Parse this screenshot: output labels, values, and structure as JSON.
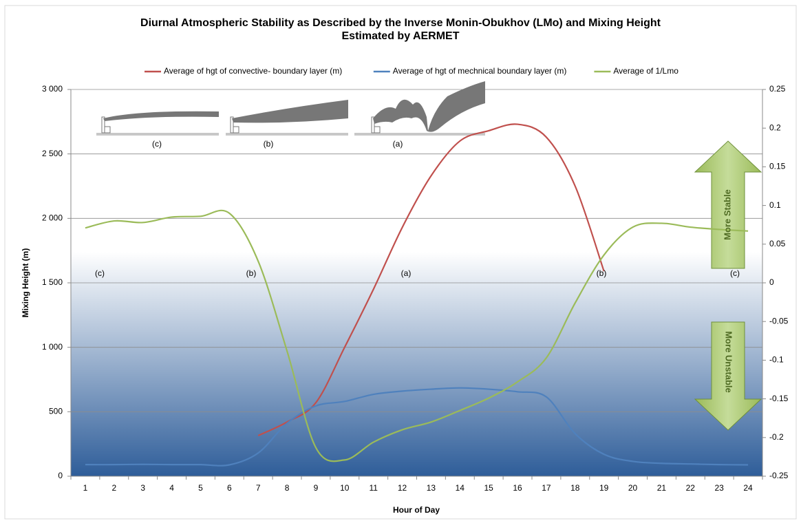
{
  "chart_data": {
    "type": "line",
    "title": "Diurnal Atmospheric Stability as Described by the Inverse Monin-Obukhov (LMo) and Mixing Height Estimated by AERMET",
    "xlabel": "Hour of Day",
    "ylabel": "Mixing Height (m)",
    "categories": [
      "1",
      "2",
      "3",
      "4",
      "5",
      "6",
      "7",
      "8",
      "9",
      "10",
      "11",
      "12",
      "13",
      "14",
      "15",
      "16",
      "17",
      "18",
      "19",
      "20",
      "21",
      "22",
      "23",
      "24"
    ],
    "series": [
      {
        "name": "Average of hgt of convective- boundary layer (m)",
        "color": "#c0504d",
        "values": [
          null,
          null,
          null,
          null,
          null,
          null,
          315,
          420,
          570,
          1000,
          1450,
          1930,
          2330,
          2600,
          2680,
          2730,
          2630,
          2250,
          1590,
          null,
          null,
          null,
          null,
          null
        ]
      },
      {
        "name": "Average of hgt of mechnical boundary layer (m)",
        "color": "#4f81bd",
        "values": [
          90,
          90,
          92,
          90,
          90,
          88,
          180,
          410,
          545,
          580,
          635,
          660,
          675,
          685,
          675,
          655,
          615,
          330,
          170,
          115,
          100,
          95,
          90,
          88
        ]
      },
      {
        "name": "Average of 1/Lmo",
        "color": "#9bbb59",
        "axis": "y2",
        "values": [
          0.071,
          0.08,
          0.078,
          0.085,
          0.086,
          0.09,
          0.028,
          -0.088,
          -0.213,
          -0.229,
          -0.206,
          -0.19,
          -0.18,
          -0.165,
          -0.149,
          -0.128,
          -0.097,
          -0.026,
          0.036,
          0.072,
          0.077,
          0.072,
          0.069,
          0.067
        ]
      }
    ],
    "ylim": [
      0,
      3000
    ],
    "yticks": [
      0,
      500,
      {
        "value": 1000,
        "label": "1 000"
      },
      {
        "value": 1500,
        "label": "1 500"
      },
      {
        "value": 2000,
        "label": "2 000"
      },
      {
        "value": 2500,
        "label": "2 500"
      },
      {
        "value": 3000,
        "label": "3 000"
      }
    ],
    "y2lim": [
      -0.25,
      0.25
    ],
    "y2ticks": [
      -0.25,
      -0.2,
      -0.15,
      -0.1,
      -0.05,
      0,
      0.05,
      0.1,
      0.15,
      0.2,
      0.25
    ],
    "grid": true,
    "legend": "top",
    "annotations": [
      "(c)",
      "(b)",
      "(a)",
      "(b)",
      "(c)",
      "(c)",
      "(b)",
      "(a)",
      "More Stable",
      "More Unstable"
    ]
  }
}
